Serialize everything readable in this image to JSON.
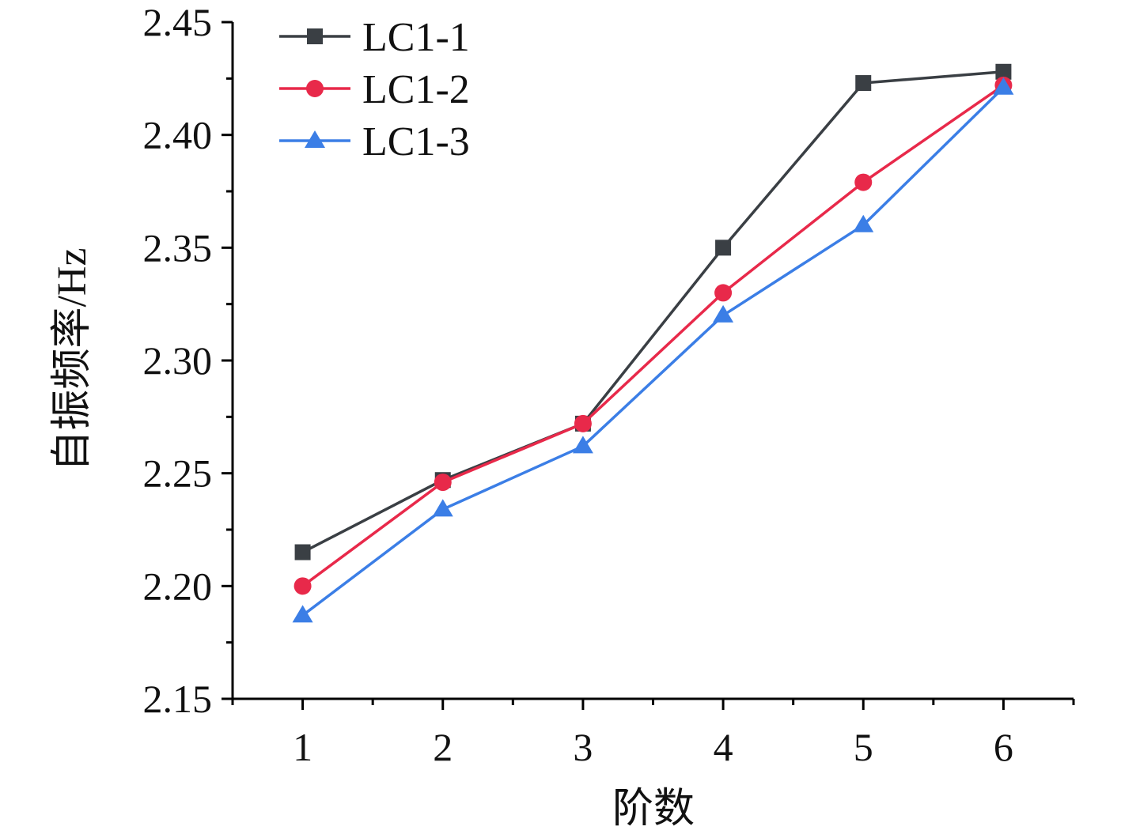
{
  "chart_data": {
    "type": "line",
    "title": "",
    "xlabel": "阶数",
    "ylabel": "自振频率/Hz",
    "categories": [
      "1",
      "2",
      "3",
      "4",
      "5",
      "6"
    ],
    "x": [
      1,
      2,
      3,
      4,
      5,
      6
    ],
    "xlim": [
      0.5,
      6.5
    ],
    "ylim": [
      2.15,
      2.45
    ],
    "y_ticks": [
      2.15,
      2.2,
      2.25,
      2.3,
      2.35,
      2.4,
      2.45
    ],
    "y_tick_labels": [
      "2.15",
      "2.20",
      "2.25",
      "2.30",
      "2.35",
      "2.40",
      "2.45"
    ],
    "grid": false,
    "legend_position": "top-left",
    "series": [
      {
        "name": "LC1-1",
        "marker": "square",
        "color": "#3a3f44",
        "values": [
          2.215,
          2.247,
          2.272,
          2.35,
          2.423,
          2.428
        ]
      },
      {
        "name": "LC1-2",
        "marker": "circle",
        "color": "#e8294a",
        "values": [
          2.2,
          2.246,
          2.272,
          2.33,
          2.379,
          2.422
        ]
      },
      {
        "name": "LC1-3",
        "marker": "triangle",
        "color": "#3b7ee6",
        "values": [
          2.187,
          2.234,
          2.262,
          2.32,
          2.36,
          2.421
        ]
      }
    ]
  }
}
